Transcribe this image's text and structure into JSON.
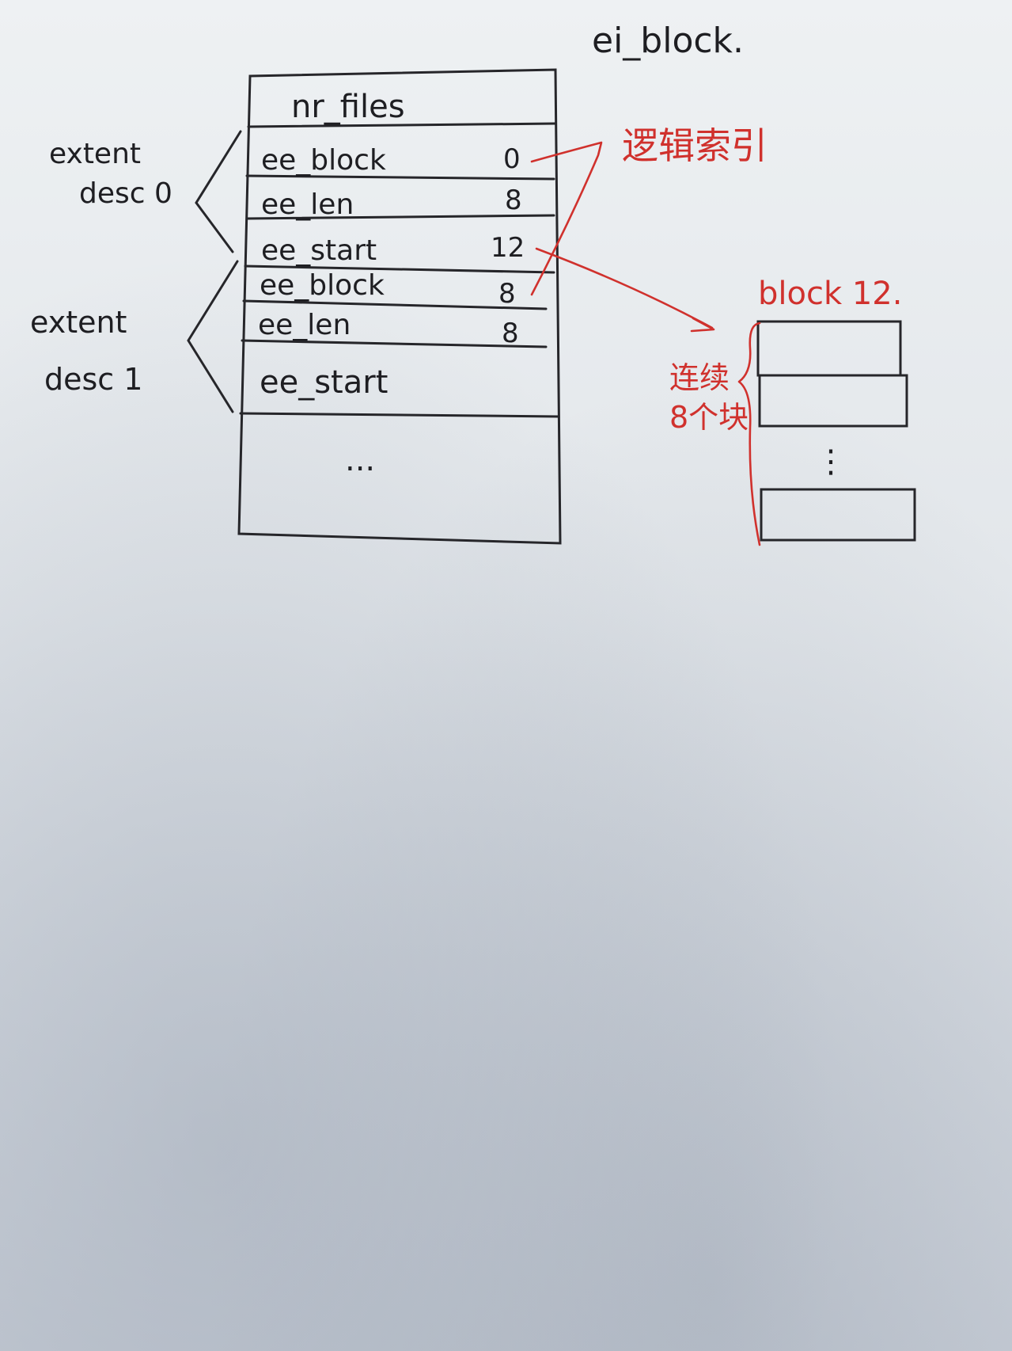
{
  "title": "ei_block.",
  "table": {
    "header": "nr_files",
    "rows": [
      {
        "field": "ee_block",
        "value": "0"
      },
      {
        "field": "ee_len",
        "value": "8"
      },
      {
        "field": "ee_start",
        "value": "12"
      },
      {
        "field": "ee_block",
        "value": "8"
      },
      {
        "field": "ee_len",
        "value": "8"
      },
      {
        "field": "ee_start",
        "value": ""
      }
    ],
    "ellipsis": "..."
  },
  "groups": [
    {
      "line1": "extent",
      "line2": "desc 0"
    },
    {
      "line1": "extent",
      "line2": "desc 1"
    }
  ],
  "annotations": {
    "logical_index": "逻辑索引",
    "block_label": "block 12.",
    "contiguous_line1": "连续",
    "contiguous_line2": "8个块",
    "vertical_dots": "⋮"
  },
  "colors": {
    "ink": "#1e1e22",
    "red_pen": "#d0312d",
    "paper": "#e6e9ec"
  }
}
